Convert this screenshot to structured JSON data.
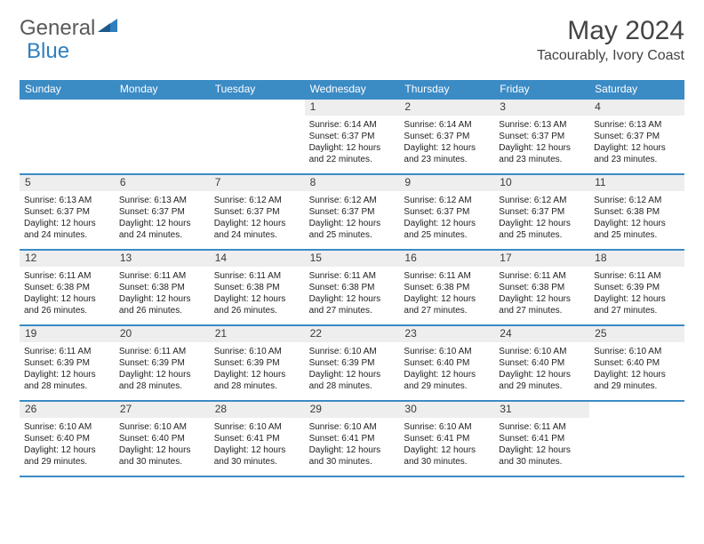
{
  "logo": {
    "text1": "General",
    "text2": "Blue"
  },
  "title": "May 2024",
  "subtitle": "Tacourably, Ivory Coast",
  "weekdays": [
    "Sunday",
    "Monday",
    "Tuesday",
    "Wednesday",
    "Thursday",
    "Friday",
    "Saturday"
  ],
  "colors": {
    "header_bar": "#3b8bc5",
    "day_num_bg": "#eeeeee",
    "logo_gray": "#5a5a5a",
    "logo_blue": "#2f7fbf"
  },
  "leading_blanks": 3,
  "trailing_blanks": 1,
  "days": [
    {
      "n": "1",
      "sunrise": "6:14 AM",
      "sunset": "6:37 PM",
      "daylight": "12 hours and 22 minutes."
    },
    {
      "n": "2",
      "sunrise": "6:14 AM",
      "sunset": "6:37 PM",
      "daylight": "12 hours and 23 minutes."
    },
    {
      "n": "3",
      "sunrise": "6:13 AM",
      "sunset": "6:37 PM",
      "daylight": "12 hours and 23 minutes."
    },
    {
      "n": "4",
      "sunrise": "6:13 AM",
      "sunset": "6:37 PM",
      "daylight": "12 hours and 23 minutes."
    },
    {
      "n": "5",
      "sunrise": "6:13 AM",
      "sunset": "6:37 PM",
      "daylight": "12 hours and 24 minutes."
    },
    {
      "n": "6",
      "sunrise": "6:13 AM",
      "sunset": "6:37 PM",
      "daylight": "12 hours and 24 minutes."
    },
    {
      "n": "7",
      "sunrise": "6:12 AM",
      "sunset": "6:37 PM",
      "daylight": "12 hours and 24 minutes."
    },
    {
      "n": "8",
      "sunrise": "6:12 AM",
      "sunset": "6:37 PM",
      "daylight": "12 hours and 25 minutes."
    },
    {
      "n": "9",
      "sunrise": "6:12 AM",
      "sunset": "6:37 PM",
      "daylight": "12 hours and 25 minutes."
    },
    {
      "n": "10",
      "sunrise": "6:12 AM",
      "sunset": "6:37 PM",
      "daylight": "12 hours and 25 minutes."
    },
    {
      "n": "11",
      "sunrise": "6:12 AM",
      "sunset": "6:38 PM",
      "daylight": "12 hours and 25 minutes."
    },
    {
      "n": "12",
      "sunrise": "6:11 AM",
      "sunset": "6:38 PM",
      "daylight": "12 hours and 26 minutes."
    },
    {
      "n": "13",
      "sunrise": "6:11 AM",
      "sunset": "6:38 PM",
      "daylight": "12 hours and 26 minutes."
    },
    {
      "n": "14",
      "sunrise": "6:11 AM",
      "sunset": "6:38 PM",
      "daylight": "12 hours and 26 minutes."
    },
    {
      "n": "15",
      "sunrise": "6:11 AM",
      "sunset": "6:38 PM",
      "daylight": "12 hours and 27 minutes."
    },
    {
      "n": "16",
      "sunrise": "6:11 AM",
      "sunset": "6:38 PM",
      "daylight": "12 hours and 27 minutes."
    },
    {
      "n": "17",
      "sunrise": "6:11 AM",
      "sunset": "6:38 PM",
      "daylight": "12 hours and 27 minutes."
    },
    {
      "n": "18",
      "sunrise": "6:11 AM",
      "sunset": "6:39 PM",
      "daylight": "12 hours and 27 minutes."
    },
    {
      "n": "19",
      "sunrise": "6:11 AM",
      "sunset": "6:39 PM",
      "daylight": "12 hours and 28 minutes."
    },
    {
      "n": "20",
      "sunrise": "6:11 AM",
      "sunset": "6:39 PM",
      "daylight": "12 hours and 28 minutes."
    },
    {
      "n": "21",
      "sunrise": "6:10 AM",
      "sunset": "6:39 PM",
      "daylight": "12 hours and 28 minutes."
    },
    {
      "n": "22",
      "sunrise": "6:10 AM",
      "sunset": "6:39 PM",
      "daylight": "12 hours and 28 minutes."
    },
    {
      "n": "23",
      "sunrise": "6:10 AM",
      "sunset": "6:40 PM",
      "daylight": "12 hours and 29 minutes."
    },
    {
      "n": "24",
      "sunrise": "6:10 AM",
      "sunset": "6:40 PM",
      "daylight": "12 hours and 29 minutes."
    },
    {
      "n": "25",
      "sunrise": "6:10 AM",
      "sunset": "6:40 PM",
      "daylight": "12 hours and 29 minutes."
    },
    {
      "n": "26",
      "sunrise": "6:10 AM",
      "sunset": "6:40 PM",
      "daylight": "12 hours and 29 minutes."
    },
    {
      "n": "27",
      "sunrise": "6:10 AM",
      "sunset": "6:40 PM",
      "daylight": "12 hours and 30 minutes."
    },
    {
      "n": "28",
      "sunrise": "6:10 AM",
      "sunset": "6:41 PM",
      "daylight": "12 hours and 30 minutes."
    },
    {
      "n": "29",
      "sunrise": "6:10 AM",
      "sunset": "6:41 PM",
      "daylight": "12 hours and 30 minutes."
    },
    {
      "n": "30",
      "sunrise": "6:10 AM",
      "sunset": "6:41 PM",
      "daylight": "12 hours and 30 minutes."
    },
    {
      "n": "31",
      "sunrise": "6:11 AM",
      "sunset": "6:41 PM",
      "daylight": "12 hours and 30 minutes."
    }
  ],
  "labels": {
    "sunrise": "Sunrise:",
    "sunset": "Sunset:",
    "daylight": "Daylight:"
  }
}
